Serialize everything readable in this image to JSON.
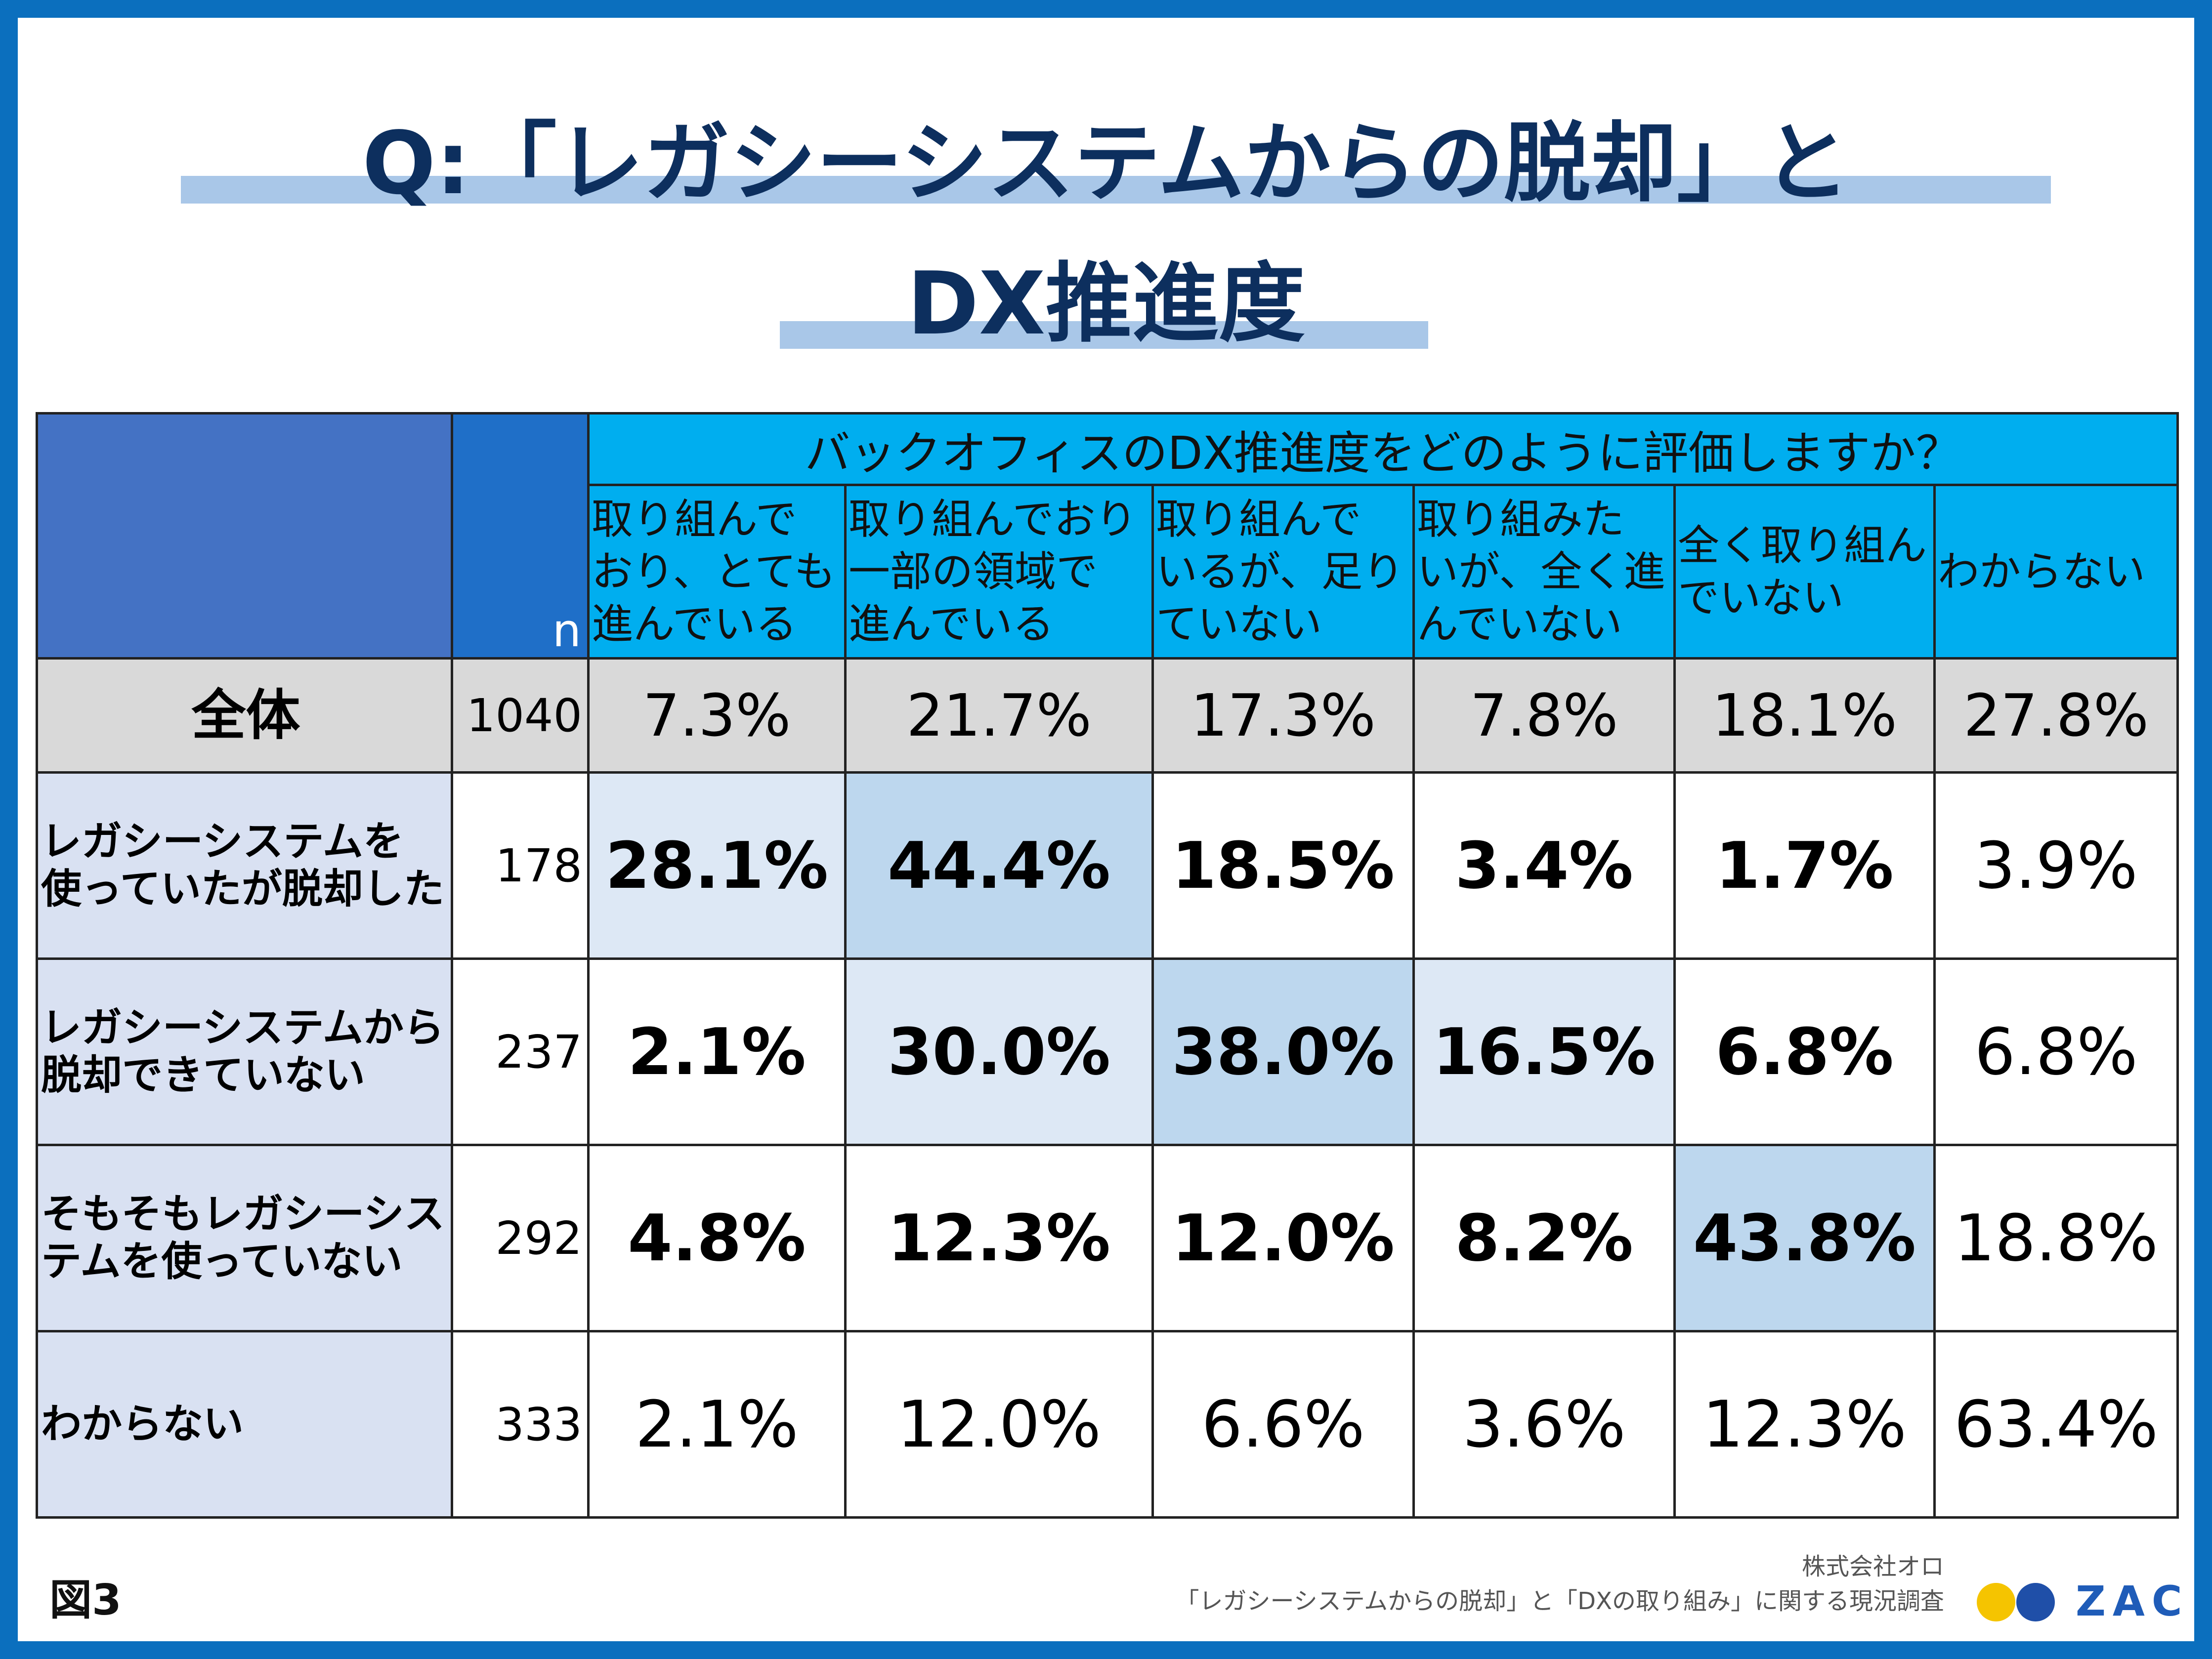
{
  "title": {
    "line1": "Q:「レガシーシステムからの脱却」と",
    "line2": "DX推進度"
  },
  "header": {
    "n_label": "n",
    "question": "バックオフィスのDX推進度をどのように評価しますか？"
  },
  "colors": {
    "border": "#0b6fbe",
    "title": "#0d2f5e",
    "header_blue": "#00aeef",
    "row_label_bg": "#d9e1f2",
    "shade_light": "#dde8f5",
    "shade_mid": "#bdd7ee"
  },
  "chart_data": {
    "type": "table",
    "title": "Q:「レガシーシステムからの脱却」とDX推進度",
    "columns": [
      {
        "lines": [
          "取り組んで",
          "おり、とても",
          "進んでいる"
        ]
      },
      {
        "lines": [
          "取り組んでおり",
          "一部の領域で",
          "進んでいる"
        ]
      },
      {
        "lines": [
          "取り組んで",
          "いるが、足り",
          "ていない"
        ]
      },
      {
        "lines": [
          "取り組みた",
          "いが、全く進",
          "んでいない"
        ]
      },
      {
        "lines": [
          "全く取り組ん",
          "でいない"
        ]
      },
      {
        "lines": [
          "わからない"
        ]
      }
    ],
    "rows": [
      {
        "label": [
          "全体"
        ],
        "n": "1040",
        "values": [
          "7.3%",
          "21.7%",
          "17.3%",
          "7.8%",
          "18.1%",
          "27.8%"
        ]
      },
      {
        "label": [
          "レガシーシステムを",
          "使っていたが脱却した"
        ],
        "n": "178",
        "values": [
          "28.1%",
          "44.4%",
          "18.5%",
          "3.4%",
          "1.7%",
          "3.9%"
        ]
      },
      {
        "label": [
          "レガシーシステムから",
          "脱却できていない"
        ],
        "n": "237",
        "values": [
          "2.1%",
          "30.0%",
          "38.0%",
          "16.5%",
          "6.8%",
          "6.8%"
        ]
      },
      {
        "label": [
          "そもそもレガシーシス",
          "テムを使っていない"
        ],
        "n": "292",
        "values": [
          "4.8%",
          "12.3%",
          "12.0%",
          "8.2%",
          "43.8%",
          "18.8%"
        ]
      },
      {
        "label": [
          "わからない"
        ],
        "n": "333",
        "values": [
          "2.1%",
          "12.0%",
          "6.6%",
          "3.6%",
          "12.3%",
          "63.4%"
        ]
      }
    ]
  },
  "footer": {
    "figure_label": "図3",
    "source_line1": "株式会社オロ",
    "source_line2": "「レガシーシステムからの脱却」と「DXの取り組み」に関する現況調査",
    "logo_text": "ZAC"
  }
}
